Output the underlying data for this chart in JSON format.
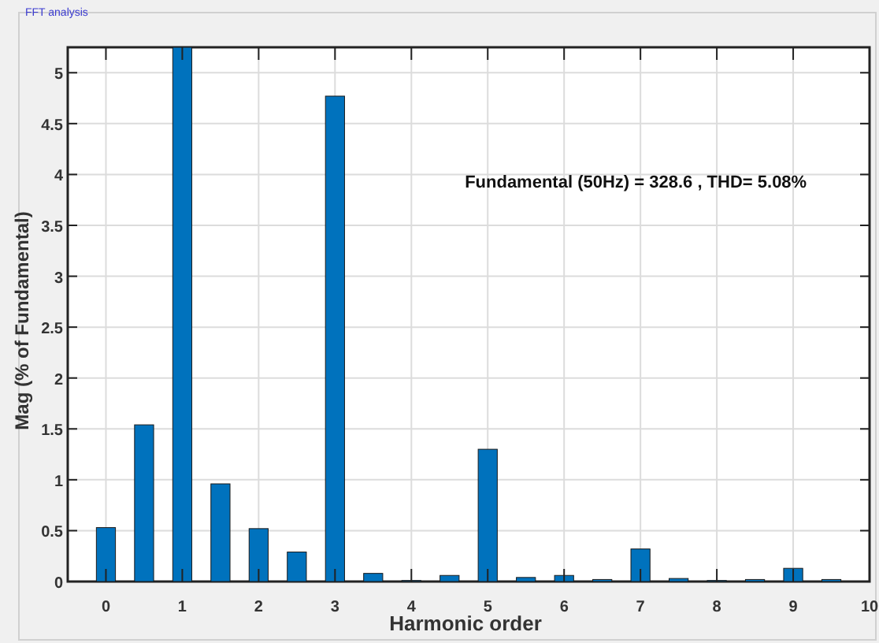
{
  "chart_data": {
    "type": "bar",
    "title": "FFT analysis",
    "xlabel": "Harmonic order",
    "ylabel": "Mag (% of Fundamental)",
    "annotations": [
      "Fundamental (50Hz) = 328.6 , THD= 5.08%"
    ],
    "x": [
      0,
      0.5,
      1,
      1.5,
      2,
      2.5,
      3,
      3.5,
      4,
      4.5,
      5,
      5.5,
      6,
      6.5,
      7,
      7.5,
      8,
      8.5,
      9,
      9.5
    ],
    "values": [
      0.53,
      1.54,
      5.25,
      0.96,
      0.52,
      0.29,
      4.77,
      0.08,
      0.01,
      0.06,
      1.3,
      0.04,
      0.06,
      0.02,
      0.32,
      0.03,
      0.01,
      0.02,
      0.13,
      0.02
    ],
    "color": "#0072bd",
    "xlim": [
      -0.5,
      10
    ],
    "xticks": [
      0,
      1,
      2,
      3,
      4,
      5,
      6,
      7,
      8,
      9,
      10
    ],
    "ylim": [
      0,
      5.25
    ],
    "yticks": [
      0,
      0.5,
      1,
      1.5,
      2,
      2.5,
      3,
      3.5,
      4,
      4.5,
      5
    ],
    "grid": true
  }
}
